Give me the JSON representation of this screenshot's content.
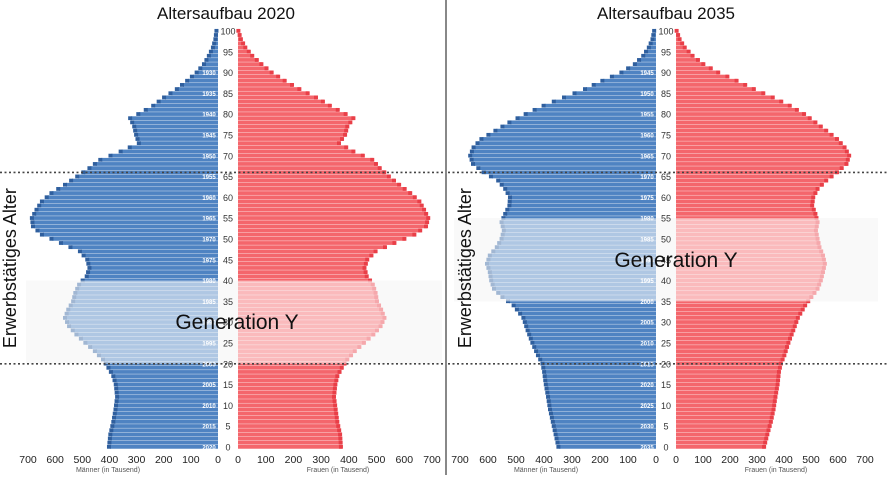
{
  "chart_data": [
    {
      "type": "population-pyramid",
      "title": "Altersaufbau 2020",
      "year": 2020,
      "age_range": [
        0,
        100
      ],
      "age_ticks": [
        0,
        5,
        10,
        15,
        20,
        25,
        30,
        35,
        40,
        45,
        50,
        55,
        60,
        65,
        70,
        75,
        80,
        85,
        90,
        95,
        100
      ],
      "birthyear_labels": [
        "2020",
        "2015",
        "2010",
        "2005",
        "2000",
        "1995",
        "1990",
        "1985",
        "1980",
        "1975",
        "1970",
        "1965",
        "1960",
        "1955",
        "1950",
        "1945",
        "1940",
        "1935",
        "1930"
      ],
      "x_ticks": [
        700,
        600,
        500,
        400,
        300,
        200,
        100,
        0
      ],
      "x_max": 700,
      "x_label_left": "Männer (in Tausend)",
      "x_label_right": "Frauen (in Tausend)",
      "working_age": {
        "label": "Erwerbstätiges Alter",
        "from": 20,
        "to": 66
      },
      "generation": {
        "label": "Generation Y",
        "from": 20,
        "to": 40
      },
      "colors": {
        "men": "#4f83c2",
        "men_dark": "#2f5f9e",
        "women": "#f4666c",
        "women_dark": "#e93f48",
        "band": "#f2f2f2",
        "overlay": "rgba(255,255,255,0.55)"
      },
      "men_profile": [
        [
          0,
          398
        ],
        [
          3,
          393
        ],
        [
          6,
          382
        ],
        [
          9,
          374
        ],
        [
          12,
          368
        ],
        [
          15,
          373
        ],
        [
          17,
          382
        ],
        [
          19,
          400
        ],
        [
          21,
          420
        ],
        [
          23,
          450
        ],
        [
          25,
          485
        ],
        [
          27,
          518
        ],
        [
          29,
          545
        ],
        [
          31,
          560
        ],
        [
          33,
          548
        ],
        [
          35,
          530
        ],
        [
          37,
          522
        ],
        [
          39,
          508
        ],
        [
          40,
          495
        ],
        [
          41,
          480
        ],
        [
          43,
          470
        ],
        [
          45,
          478
        ],
        [
          47,
          505
        ],
        [
          49,
          575
        ],
        [
          51,
          645
        ],
        [
          53,
          678
        ],
        [
          55,
          682
        ],
        [
          57,
          665
        ],
        [
          59,
          645
        ],
        [
          61,
          610
        ],
        [
          63,
          560
        ],
        [
          65,
          515
        ],
        [
          67,
          470
        ],
        [
          69,
          430
        ],
        [
          71,
          355
        ],
        [
          73,
          288
        ],
        [
          75,
          298
        ],
        [
          77,
          305
        ],
        [
          79,
          320
        ],
        [
          80,
          290
        ],
        [
          82,
          235
        ],
        [
          84,
          195
        ],
        [
          86,
          148
        ],
        [
          88,
          110
        ],
        [
          90,
          75
        ],
        [
          92,
          48
        ],
        [
          94,
          30
        ],
        [
          96,
          15
        ],
        [
          98,
          6
        ],
        [
          100,
          2
        ]
      ],
      "women_profile": [
        [
          0,
          375
        ],
        [
          3,
          372
        ],
        [
          6,
          362
        ],
        [
          9,
          356
        ],
        [
          12,
          350
        ],
        [
          15,
          355
        ],
        [
          17,
          362
        ],
        [
          19,
          378
        ],
        [
          21,
          398
        ],
        [
          23,
          425
        ],
        [
          25,
          458
        ],
        [
          27,
          492
        ],
        [
          29,
          518
        ],
        [
          31,
          532
        ],
        [
          33,
          520
        ],
        [
          35,
          505
        ],
        [
          37,
          500
        ],
        [
          39,
          490
        ],
        [
          40,
          480
        ],
        [
          41,
          468
        ],
        [
          43,
          460
        ],
        [
          45,
          470
        ],
        [
          47,
          500
        ],
        [
          49,
          568
        ],
        [
          51,
          640
        ],
        [
          53,
          682
        ],
        [
          55,
          690
        ],
        [
          57,
          675
        ],
        [
          59,
          658
        ],
        [
          61,
          625
        ],
        [
          63,
          585
        ],
        [
          65,
          548
        ],
        [
          67,
          515
        ],
        [
          69,
          488
        ],
        [
          71,
          420
        ],
        [
          73,
          368
        ],
        [
          75,
          390
        ],
        [
          77,
          398
        ],
        [
          79,
          420
        ],
        [
          80,
          392
        ],
        [
          82,
          335
        ],
        [
          84,
          285
        ],
        [
          86,
          225
        ],
        [
          88,
          172
        ],
        [
          90,
          125
        ],
        [
          92,
          88
        ],
        [
          94,
          55
        ],
        [
          96,
          30
        ],
        [
          98,
          14
        ],
        [
          100,
          5
        ]
      ]
    },
    {
      "type": "population-pyramid",
      "title": "Altersaufbau 2035",
      "year": 2035,
      "age_range": [
        0,
        100
      ],
      "age_ticks": [
        0,
        5,
        10,
        15,
        20,
        25,
        30,
        35,
        40,
        45,
        50,
        55,
        60,
        65,
        70,
        75,
        80,
        85,
        90,
        95,
        100
      ],
      "birthyear_labels": [
        "2035",
        "2030",
        "2025",
        "2020",
        "2015",
        "2010",
        "2005",
        "2000",
        "1995",
        "1990",
        "1985",
        "1980",
        "1975",
        "1970",
        "1965",
        "1960",
        "1955",
        "1950",
        "1945"
      ],
      "x_ticks": [
        700,
        600,
        500,
        400,
        300,
        200,
        100,
        0
      ],
      "x_max": 700,
      "x_label_left": "Männer (in Tausend)",
      "x_label_right": "Frauen (in Tausend)",
      "working_age": {
        "label": "Erwerbstätiges Alter",
        "from": 20,
        "to": 66
      },
      "generation": {
        "label": "Generation Y",
        "from": 35,
        "to": 55
      },
      "colors": {
        "men": "#4f83c2",
        "men_dark": "#2f5f9e",
        "women": "#f4666c",
        "women_dark": "#e93f48",
        "band": "#f2f2f2",
        "overlay": "rgba(255,255,255,0.55)"
      },
      "men_profile": [
        [
          0,
          345
        ],
        [
          3,
          355
        ],
        [
          6,
          365
        ],
        [
          9,
          375
        ],
        [
          12,
          382
        ],
        [
          15,
          390
        ],
        [
          18,
          396
        ],
        [
          20,
          402
        ],
        [
          22,
          418
        ],
        [
          25,
          438
        ],
        [
          28,
          455
        ],
        [
          31,
          470
        ],
        [
          34,
          505
        ],
        [
          36,
          545
        ],
        [
          38,
          575
        ],
        [
          40,
          585
        ],
        [
          42,
          590
        ],
        [
          44,
          600
        ],
        [
          46,
          590
        ],
        [
          48,
          565
        ],
        [
          50,
          548
        ],
        [
          52,
          540
        ],
        [
          54,
          548
        ],
        [
          56,
          535
        ],
        [
          58,
          520
        ],
        [
          60,
          518
        ],
        [
          62,
          535
        ],
        [
          64,
          560
        ],
        [
          66,
          612
        ],
        [
          68,
          650
        ],
        [
          70,
          660
        ],
        [
          72,
          648
        ],
        [
          74,
          620
        ],
        [
          76,
          570
        ],
        [
          78,
          520
        ],
        [
          80,
          462
        ],
        [
          82,
          398
        ],
        [
          84,
          325
        ],
        [
          86,
          250
        ],
        [
          88,
          188
        ],
        [
          90,
          120
        ],
        [
          92,
          72
        ],
        [
          94,
          42
        ],
        [
          96,
          22
        ],
        [
          98,
          9
        ],
        [
          100,
          3
        ]
      ],
      "women_profile": [
        [
          0,
          330
        ],
        [
          3,
          342
        ],
        [
          6,
          355
        ],
        [
          9,
          365
        ],
        [
          12,
          372
        ],
        [
          15,
          380
        ],
        [
          18,
          385
        ],
        [
          20,
          392
        ],
        [
          22,
          405
        ],
        [
          25,
          420
        ],
        [
          28,
          438
        ],
        [
          31,
          455
        ],
        [
          34,
          482
        ],
        [
          36,
          505
        ],
        [
          38,
          528
        ],
        [
          40,
          540
        ],
        [
          42,
          548
        ],
        [
          44,
          555
        ],
        [
          46,
          548
        ],
        [
          48,
          535
        ],
        [
          50,
          528
        ],
        [
          52,
          522
        ],
        [
          54,
          528
        ],
        [
          56,
          520
        ],
        [
          58,
          508
        ],
        [
          60,
          512
        ],
        [
          62,
          528
        ],
        [
          64,
          560
        ],
        [
          66,
          600
        ],
        [
          68,
          635
        ],
        [
          70,
          645
        ],
        [
          72,
          628
        ],
        [
          74,
          600
        ],
        [
          76,
          560
        ],
        [
          78,
          520
        ],
        [
          80,
          478
        ],
        [
          82,
          425
        ],
        [
          84,
          362
        ],
        [
          86,
          292
        ],
        [
          88,
          228
        ],
        [
          90,
          160
        ],
        [
          92,
          105
        ],
        [
          94,
          65
        ],
        [
          96,
          36
        ],
        [
          98,
          17
        ],
        [
          100,
          6
        ]
      ]
    }
  ]
}
